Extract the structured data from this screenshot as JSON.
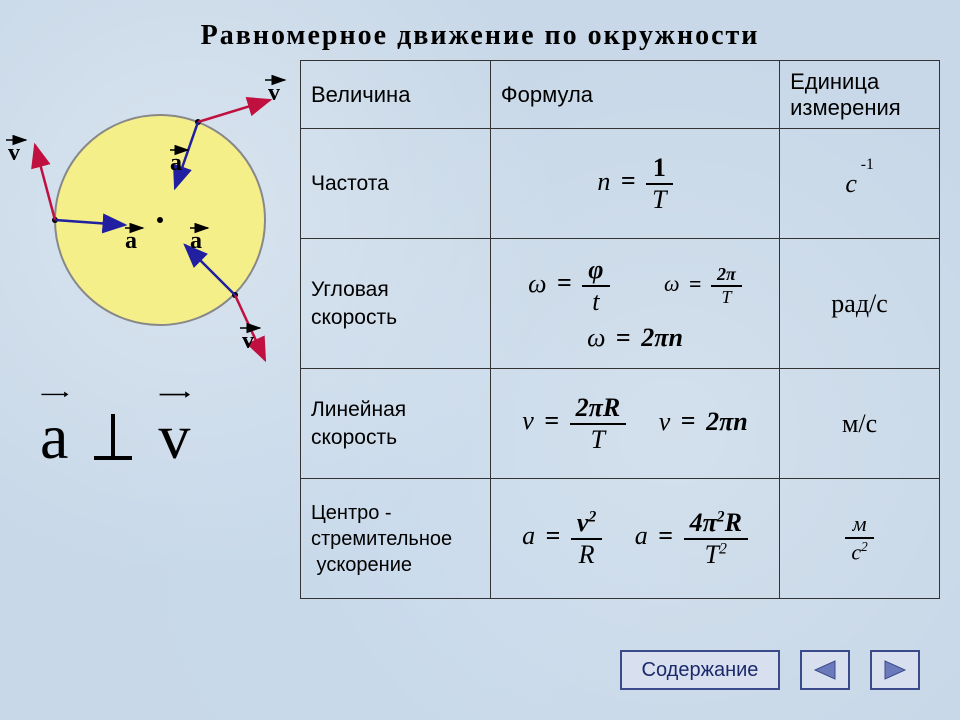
{
  "title": "Равномерное  движение  по  окружности",
  "table": {
    "headers": [
      "Величина",
      "Формула",
      "Единица измерения"
    ],
    "rows": [
      {
        "quantity": "Частота",
        "unit_html": "<i>с</i><sup style='font-size:0.6em;position:relative;top:-0.8em'> -1</sup>"
      },
      {
        "quantity": "Угловая скорость",
        "unit": "рад/с"
      },
      {
        "quantity": "Линейная скорость",
        "unit": "м/с"
      },
      {
        "quantity": "Центро - стремительное ускорение",
        "unit_frac": {
          "num": "м",
          "den": "с<sup>2</sup>"
        }
      }
    ]
  },
  "diagram": {
    "circle_fill": "#f5ef8a",
    "circle_stroke": "#888",
    "v_color": "#c01040",
    "a_color": "#2020a0",
    "labels": {
      "v": "v",
      "a": "a"
    }
  },
  "perp_label": {
    "a": "a",
    "v": "v"
  },
  "footer": {
    "contents": "Содержание"
  },
  "colors": {
    "bg": "#c8d8e8",
    "border": "#333",
    "btn_border": "#3a4a8a",
    "btn_fill": "#d8e0f0",
    "nav_tri": "#6a7aba"
  }
}
